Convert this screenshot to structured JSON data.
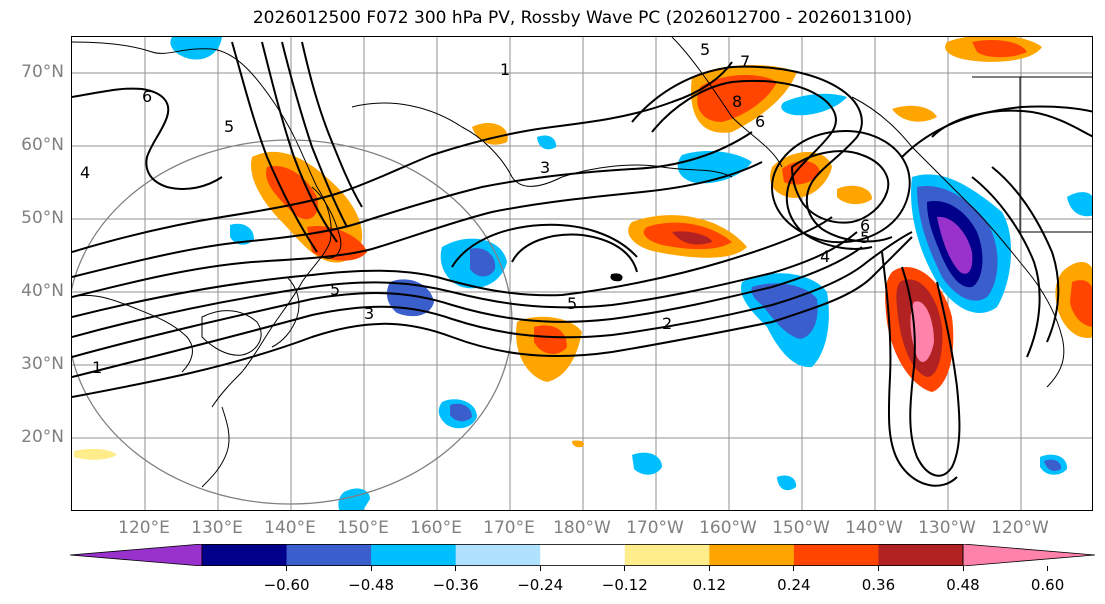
{
  "title": "2026012500 F072 300 hPa PV, Rossby Wave PC (2026012700 - 2026013100)",
  "lat_labels": [
    "70°N",
    "60°N",
    "50°N",
    "40°N",
    "30°N",
    "20°N"
  ],
  "lon_labels": [
    "120°E",
    "130°E",
    "140°E",
    "150°E",
    "160°E",
    "170°E",
    "180°W",
    "170°W",
    "160°W",
    "150°W",
    "140°W",
    "130°W",
    "120°W"
  ],
  "contour_labels": [
    "1",
    "1",
    "2",
    "3",
    "3",
    "4",
    "4",
    "5",
    "5",
    "5",
    "5",
    "5",
    "6",
    "6",
    "6",
    "7",
    "8"
  ],
  "colorbar": {
    "colors": [
      "#9932cc",
      "#00008b",
      "#3a5fcd",
      "#00bfff",
      "#b0e2ff",
      "#ffffff",
      "#ffec8b",
      "#ffa500",
      "#ff4500",
      "#b22222",
      "#ff82ab"
    ],
    "tick_labels": [
      "−0.60",
      "−0.48",
      "−0.36",
      "−0.24",
      "−0.12",
      "0.12",
      "0.24",
      "0.36",
      "0.48",
      "0.60"
    ]
  }
}
